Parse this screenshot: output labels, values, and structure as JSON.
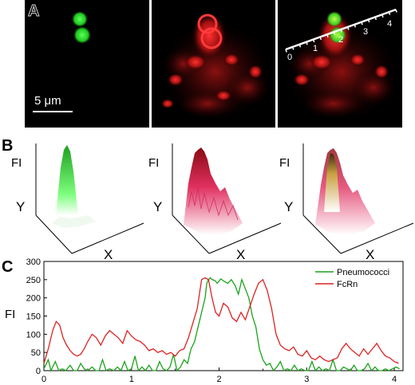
{
  "panels": {
    "a_label": "A",
    "b_label": "B",
    "c_label": "C"
  },
  "panel_a": {
    "scale_bar_label": "5 μm",
    "line_ticks": [
      "0",
      "1",
      "2",
      "3",
      "4"
    ],
    "colors": {
      "pneumococci": "#22dd22",
      "fcrn": "#ff2a2a",
      "background": "#000000"
    }
  },
  "panel_b": {
    "z_label": "FI",
    "x_label": "X",
    "y_label": "Y"
  },
  "chart_data": {
    "type": "line",
    "title": "",
    "ylabel": "FI",
    "xlabel": "",
    "xlim": [
      0,
      4.1
    ],
    "ylim": [
      0,
      300
    ],
    "x_ticks": [
      "0",
      "1",
      "2",
      "3",
      "4"
    ],
    "y_ticks": [
      "0",
      "50",
      "100",
      "150",
      "200",
      "250",
      "300"
    ],
    "legend_position": "top-right",
    "series": [
      {
        "name": "Pneumococci",
        "color": "#1aa31a",
        "x": [
          0.0,
          0.05,
          0.08,
          0.1,
          0.13,
          0.17,
          0.21,
          0.25,
          0.3,
          0.34,
          0.38,
          0.42,
          0.46,
          0.5,
          0.55,
          0.59,
          0.63,
          0.67,
          0.71,
          0.75,
          0.8,
          0.84,
          0.88,
          0.92,
          0.96,
          1.0,
          1.04,
          1.08,
          1.12,
          1.16,
          1.2,
          1.24,
          1.28,
          1.32,
          1.36,
          1.4,
          1.44,
          1.48,
          1.52,
          1.56,
          1.6,
          1.64,
          1.68,
          1.72,
          1.76,
          1.8,
          1.84,
          1.86,
          1.88,
          1.9,
          1.92,
          1.95,
          1.98,
          2.02,
          2.06,
          2.1,
          2.14,
          2.18,
          2.22,
          2.26,
          2.3,
          2.34,
          2.38,
          2.42,
          2.46,
          2.5,
          2.54,
          2.58,
          2.62,
          2.66,
          2.7,
          2.74,
          2.78,
          2.82,
          2.86,
          2.9,
          2.94,
          2.98,
          3.02,
          3.06,
          3.1,
          3.14,
          3.18,
          3.22,
          3.26,
          3.3,
          3.34,
          3.38,
          3.42,
          3.46,
          3.5,
          3.54,
          3.58,
          3.62,
          3.66,
          3.7,
          3.74,
          3.78,
          3.82,
          3.86,
          3.9,
          3.94,
          3.98,
          4.02,
          4.06
        ],
        "y": [
          5,
          30,
          0,
          10,
          25,
          0,
          5,
          0,
          15,
          0,
          0,
          20,
          5,
          0,
          10,
          0,
          0,
          30,
          0,
          5,
          0,
          10,
          0,
          25,
          0,
          5,
          40,
          0,
          10,
          0,
          15,
          0,
          0,
          25,
          5,
          0,
          10,
          45,
          0,
          10,
          30,
          20,
          60,
          80,
          120,
          160,
          200,
          240,
          250,
          255,
          250,
          248,
          240,
          252,
          245,
          240,
          250,
          235,
          210,
          250,
          225,
          200,
          150,
          120,
          60,
          30,
          15,
          20,
          0,
          10,
          25,
          0,
          5,
          0,
          15,
          0,
          5,
          0,
          0,
          25,
          0,
          10,
          0,
          5,
          0,
          30,
          0,
          0,
          10,
          5,
          0,
          15,
          0,
          0,
          5,
          20,
          0,
          10,
          0,
          0,
          5,
          0,
          5,
          10,
          5
        ]
      },
      {
        "name": "FcRn",
        "color": "#dd2222",
        "x": [
          0.0,
          0.05,
          0.1,
          0.14,
          0.18,
          0.22,
          0.26,
          0.3,
          0.34,
          0.38,
          0.42,
          0.46,
          0.5,
          0.55,
          0.6,
          0.65,
          0.7,
          0.75,
          0.8,
          0.85,
          0.9,
          0.95,
          1.0,
          1.05,
          1.1,
          1.15,
          1.2,
          1.25,
          1.3,
          1.35,
          1.4,
          1.45,
          1.5,
          1.55,
          1.6,
          1.65,
          1.7,
          1.75,
          1.8,
          1.84,
          1.88,
          1.92,
          1.96,
          2.0,
          2.05,
          2.1,
          2.15,
          2.2,
          2.25,
          2.3,
          2.35,
          2.4,
          2.45,
          2.5,
          2.55,
          2.6,
          2.65,
          2.7,
          2.75,
          2.8,
          2.85,
          2.9,
          2.95,
          3.0,
          3.05,
          3.1,
          3.15,
          3.2,
          3.25,
          3.3,
          3.35,
          3.4,
          3.45,
          3.5,
          3.55,
          3.6,
          3.65,
          3.7,
          3.75,
          3.8,
          3.85,
          3.9,
          3.95,
          4.0,
          4.05
        ],
        "y": [
          20,
          60,
          110,
          135,
          125,
          90,
          70,
          55,
          45,
          40,
          45,
          60,
          80,
          100,
          90,
          70,
          95,
          110,
          100,
          90,
          75,
          110,
          95,
          85,
          80,
          70,
          55,
          60,
          50,
          55,
          45,
          50,
          40,
          55,
          60,
          90,
          130,
          170,
          250,
          255,
          250,
          200,
          160,
          150,
          185,
          175,
          145,
          135,
          160,
          140,
          175,
          210,
          240,
          250,
          220,
          170,
          100,
          70,
          60,
          55,
          65,
          45,
          40,
          55,
          35,
          30,
          40,
          30,
          25,
          30,
          35,
          60,
          75,
          60,
          50,
          40,
          60,
          45,
          60,
          75,
          55,
          40,
          35,
          25,
          20
        ]
      }
    ]
  }
}
